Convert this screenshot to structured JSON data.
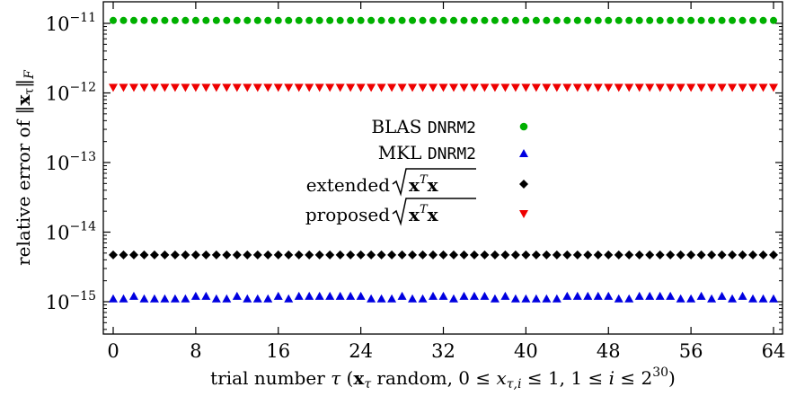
{
  "chart_data": {
    "type": "scatter",
    "ylabel": "relative error of ‖x_τ‖_F",
    "xlabel": "trial number τ (x_τ random, 0 ≤ x_{τ,i} ≤ 1, 1 ≤ i ≤ 2^30)",
    "xlim": [
      0,
      64
    ],
    "ylim": [
      3e-16,
      2e-11
    ],
    "yscale": "log",
    "x_ticks": [
      "0",
      "8",
      "16",
      "24",
      "32",
      "40",
      "48",
      "56",
      "64"
    ],
    "y_ticks": [
      {
        "base": "10",
        "exp": "−11",
        "value": 1e-11
      },
      {
        "base": "10",
        "exp": "−12",
        "value": 1e-12
      },
      {
        "base": "10",
        "exp": "−13",
        "value": 1e-13
      },
      {
        "base": "10",
        "exp": "−14",
        "value": 1e-14
      },
      {
        "base": "10",
        "exp": "−15",
        "value": 1e-15
      }
    ],
    "legend_placement": "center",
    "series": [
      {
        "name": "BLAS DNRM2",
        "name_prefix": "BLAS ",
        "name_code": "DNRM2",
        "marker": "circle",
        "color": "#00b000",
        "x": [
          0,
          1,
          2,
          3,
          4,
          5,
          6,
          7,
          8,
          9,
          10,
          11,
          12,
          13,
          14,
          15,
          16,
          17,
          18,
          19,
          20,
          21,
          22,
          23,
          24,
          25,
          26,
          27,
          28,
          29,
          30,
          31,
          32,
          33,
          34,
          35,
          36,
          37,
          38,
          39,
          40,
          41,
          42,
          43,
          44,
          45,
          46,
          47,
          48,
          49,
          50,
          51,
          52,
          53,
          54,
          55,
          56,
          57,
          58,
          59,
          60,
          61,
          62,
          63,
          64
        ],
        "y": [
          1.1e-11,
          1.1e-11,
          1.1e-11,
          1.1e-11,
          1.1e-11,
          1.1e-11,
          1.1e-11,
          1.1e-11,
          1.1e-11,
          1.1e-11,
          1.1e-11,
          1.1e-11,
          1.1e-11,
          1.1e-11,
          1.1e-11,
          1.1e-11,
          1.1e-11,
          1.1e-11,
          1.1e-11,
          1.1e-11,
          1.1e-11,
          1.1e-11,
          1.1e-11,
          1.1e-11,
          1.1e-11,
          1.1e-11,
          1.1e-11,
          1.1e-11,
          1.1e-11,
          1.1e-11,
          1.1e-11,
          1.1e-11,
          1.1e-11,
          1.1e-11,
          1.1e-11,
          1.1e-11,
          1.1e-11,
          1.1e-11,
          1.1e-11,
          1.1e-11,
          1.1e-11,
          1.1e-11,
          1.1e-11,
          1.1e-11,
          1.1e-11,
          1.1e-11,
          1.1e-11,
          1.1e-11,
          1.1e-11,
          1.1e-11,
          1.1e-11,
          1.1e-11,
          1.1e-11,
          1.1e-11,
          1.1e-11,
          1.1e-11,
          1.1e-11,
          1.1e-11,
          1.1e-11,
          1.1e-11,
          1.1e-11,
          1.1e-11,
          1.1e-11,
          1.1e-11,
          1.1e-11
        ]
      },
      {
        "name": "MKL DNRM2",
        "name_prefix": "MKL ",
        "name_code": "DNRM2",
        "marker": "triangle-up",
        "color": "#0000e0",
        "x": [
          0,
          1,
          2,
          3,
          4,
          5,
          6,
          7,
          8,
          9,
          10,
          11,
          12,
          13,
          14,
          15,
          16,
          17,
          18,
          19,
          20,
          21,
          22,
          23,
          24,
          25,
          26,
          27,
          28,
          29,
          30,
          31,
          32,
          33,
          34,
          35,
          36,
          37,
          38,
          39,
          40,
          41,
          42,
          43,
          44,
          45,
          46,
          47,
          48,
          49,
          50,
          51,
          52,
          53,
          54,
          55,
          56,
          57,
          58,
          59,
          60,
          61,
          62,
          63,
          64
        ],
        "y": [
          1.1e-15,
          1.1e-15,
          1.2e-15,
          1.1e-15,
          1.1e-15,
          1.1e-15,
          1.1e-15,
          1.1e-15,
          1.2e-15,
          1.2e-15,
          1.1e-15,
          1.1e-15,
          1.2e-15,
          1.1e-15,
          1.1e-15,
          1.1e-15,
          1.2e-15,
          1.1e-15,
          1.2e-15,
          1.2e-15,
          1.2e-15,
          1.2e-15,
          1.2e-15,
          1.2e-15,
          1.2e-15,
          1.1e-15,
          1.1e-15,
          1.1e-15,
          1.2e-15,
          1.1e-15,
          1.1e-15,
          1.2e-15,
          1.2e-15,
          1.1e-15,
          1.2e-15,
          1.2e-15,
          1.2e-15,
          1.1e-15,
          1.2e-15,
          1.1e-15,
          1.1e-15,
          1.1e-15,
          1.1e-15,
          1.1e-15,
          1.2e-15,
          1.2e-15,
          1.2e-15,
          1.2e-15,
          1.2e-15,
          1.1e-15,
          1.1e-15,
          1.2e-15,
          1.2e-15,
          1.2e-15,
          1.2e-15,
          1.1e-15,
          1.1e-15,
          1.2e-15,
          1.1e-15,
          1.2e-15,
          1.1e-15,
          1.2e-15,
          1.1e-15,
          1.1e-15,
          1.1e-15
        ]
      },
      {
        "name": "extended √(xᵀx)",
        "name_prefix": "extended ",
        "name_math": "xTx",
        "marker": "diamond",
        "color": "#000000",
        "x": [
          0,
          1,
          2,
          3,
          4,
          5,
          6,
          7,
          8,
          9,
          10,
          11,
          12,
          13,
          14,
          15,
          16,
          17,
          18,
          19,
          20,
          21,
          22,
          23,
          24,
          25,
          26,
          27,
          28,
          29,
          30,
          31,
          32,
          33,
          34,
          35,
          36,
          37,
          38,
          39,
          40,
          41,
          42,
          43,
          44,
          45,
          46,
          47,
          48,
          49,
          50,
          51,
          52,
          53,
          54,
          55,
          56,
          57,
          58,
          59,
          60,
          61,
          62,
          63,
          64
        ],
        "y": [
          4.7e-15,
          4.7e-15,
          4.7e-15,
          4.7e-15,
          4.7e-15,
          4.7e-15,
          4.7e-15,
          4.7e-15,
          4.7e-15,
          4.7e-15,
          4.7e-15,
          4.7e-15,
          4.7e-15,
          4.7e-15,
          4.7e-15,
          4.7e-15,
          4.7e-15,
          4.7e-15,
          4.7e-15,
          4.7e-15,
          4.7e-15,
          4.7e-15,
          4.7e-15,
          4.7e-15,
          4.7e-15,
          4.7e-15,
          4.7e-15,
          4.7e-15,
          4.7e-15,
          4.7e-15,
          4.7e-15,
          4.7e-15,
          4.7e-15,
          4.7e-15,
          4.7e-15,
          4.7e-15,
          4.7e-15,
          4.7e-15,
          4.7e-15,
          4.7e-15,
          4.7e-15,
          4.7e-15,
          4.7e-15,
          4.7e-15,
          4.7e-15,
          4.7e-15,
          4.7e-15,
          4.7e-15,
          4.7e-15,
          4.7e-15,
          4.7e-15,
          4.7e-15,
          4.7e-15,
          4.7e-15,
          4.7e-15,
          4.7e-15,
          4.7e-15,
          4.7e-15,
          4.7e-15,
          4.7e-15,
          4.7e-15,
          4.7e-15,
          4.7e-15,
          4.7e-15,
          4.7e-15
        ]
      },
      {
        "name": "proposed √(xᵀx)",
        "name_prefix": "proposed ",
        "name_math": "xTx",
        "marker": "triangle-down",
        "color": "#ee0000",
        "x": [
          0,
          1,
          2,
          3,
          4,
          5,
          6,
          7,
          8,
          9,
          10,
          11,
          12,
          13,
          14,
          15,
          16,
          17,
          18,
          19,
          20,
          21,
          22,
          23,
          24,
          25,
          26,
          27,
          28,
          29,
          30,
          31,
          32,
          33,
          34,
          35,
          36,
          37,
          38,
          39,
          40,
          41,
          42,
          43,
          44,
          45,
          46,
          47,
          48,
          49,
          50,
          51,
          52,
          53,
          54,
          55,
          56,
          57,
          58,
          59,
          60,
          61,
          62,
          63,
          64
        ],
        "y": [
          1.2e-12,
          1.2e-12,
          1.2e-12,
          1.2e-12,
          1.2e-12,
          1.2e-12,
          1.2e-12,
          1.2e-12,
          1.2e-12,
          1.2e-12,
          1.2e-12,
          1.2e-12,
          1.2e-12,
          1.2e-12,
          1.2e-12,
          1.2e-12,
          1.2e-12,
          1.2e-12,
          1.2e-12,
          1.2e-12,
          1.2e-12,
          1.2e-12,
          1.2e-12,
          1.2e-12,
          1.2e-12,
          1.2e-12,
          1.2e-12,
          1.2e-12,
          1.2e-12,
          1.2e-12,
          1.2e-12,
          1.2e-12,
          1.2e-12,
          1.2e-12,
          1.2e-12,
          1.2e-12,
          1.2e-12,
          1.2e-12,
          1.2e-12,
          1.2e-12,
          1.2e-12,
          1.2e-12,
          1.2e-12,
          1.2e-12,
          1.2e-12,
          1.2e-12,
          1.2e-12,
          1.2e-12,
          1.2e-12,
          1.2e-12,
          1.2e-12,
          1.2e-12,
          1.2e-12,
          1.2e-12,
          1.2e-12,
          1.2e-12,
          1.2e-12,
          1.2e-12,
          1.2e-12,
          1.2e-12,
          1.2e-12,
          1.2e-12,
          1.2e-12,
          1.2e-12,
          1.2e-12
        ]
      }
    ]
  }
}
